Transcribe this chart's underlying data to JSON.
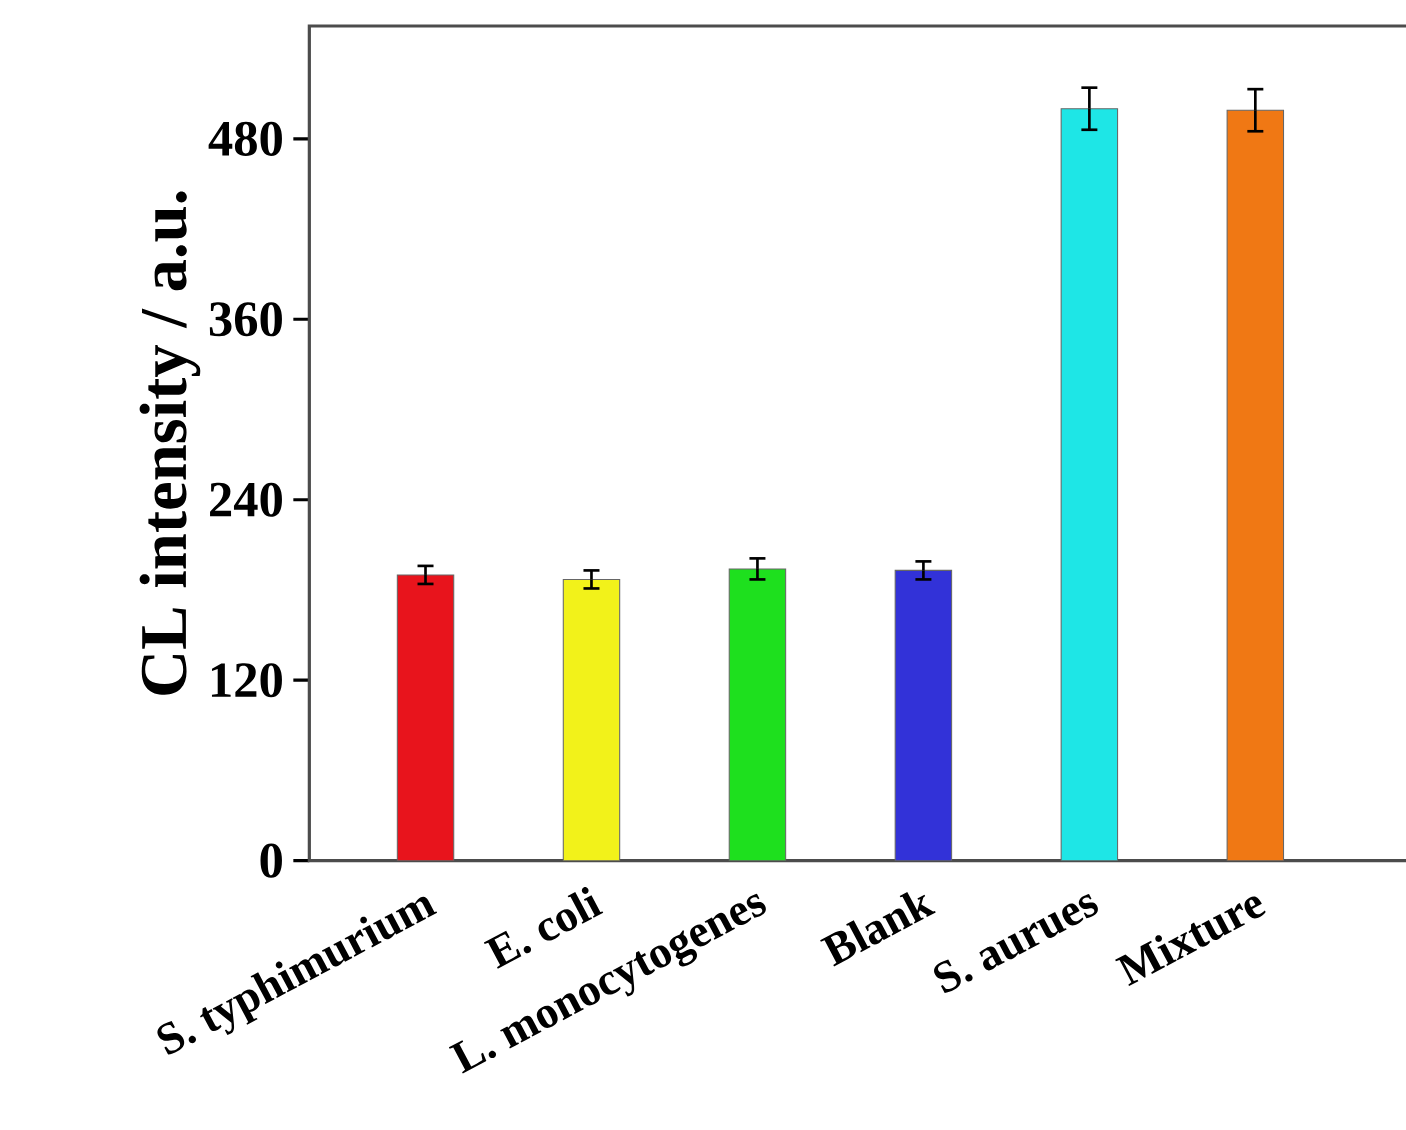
{
  "chart_data": {
    "type": "bar",
    "ylabel": "CL intensity / a.u.",
    "categories": [
      "S. typhimurium",
      "E. coli",
      "L. monocytogenes",
      "Blank",
      "S. aurues",
      "Mixture"
    ],
    "values": [
      190,
      187,
      194,
      193,
      500,
      499
    ],
    "errors": [
      6,
      6,
      7,
      6,
      14,
      14
    ],
    "colors": [
      "#e8141c",
      "#f2f21a",
      "#1ee01e",
      "#3232d8",
      "#1ee6e6",
      "#f07814"
    ],
    "ylim": [
      0,
      555
    ],
    "yticks": [
      0,
      120,
      240,
      360,
      480
    ],
    "grid": false
  }
}
